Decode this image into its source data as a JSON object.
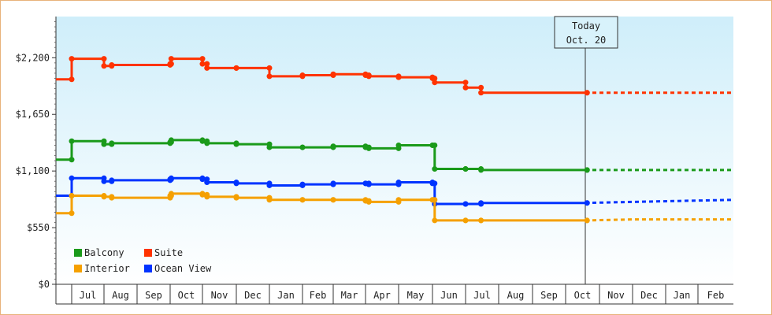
{
  "chart_data": {
    "type": "line",
    "step": true,
    "y_ticks": [
      0,
      550,
      1100,
      1650,
      2200
    ],
    "y_tick_labels": [
      "$0",
      "$550",
      "$1,100",
      "$1,650",
      "$2,200"
    ],
    "ylim": [
      0,
      2600
    ],
    "x_labels": [
      "Jul",
      "Aug",
      "Sep",
      "Oct",
      "Nov",
      "Dec",
      "Jan",
      "Feb",
      "Mar",
      "Apr",
      "May",
      "Jun",
      "Jul",
      "Aug",
      "Sep",
      "Oct",
      "Nov",
      "Dec",
      "Jan",
      "Feb"
    ],
    "today": {
      "line1": "Today",
      "line2": "Oct. 20"
    },
    "legend_position": "bottom-left",
    "colors": {
      "Balcony": "#1a9a1a",
      "Suite": "#ff3300",
      "Interior": "#f5a000",
      "Ocean View": "#0033ff"
    },
    "series": [
      {
        "name": "Suite",
        "color": "#ff3300",
        "points": [
          [
            "Jun 1",
            1990
          ],
          [
            "Jul 1",
            2190
          ],
          [
            "Aug 1",
            2120
          ],
          [
            "Aug 8",
            2130
          ],
          [
            "Oct 1",
            2140
          ],
          [
            "Oct 2",
            2190
          ],
          [
            "Nov 1",
            2140
          ],
          [
            "Nov 5",
            2100
          ],
          [
            "Dec 1",
            2100
          ],
          [
            "Jan 1",
            2020
          ],
          [
            "Feb 1",
            2030
          ],
          [
            "Mar 1",
            2040
          ],
          [
            "Apr 1",
            2030
          ],
          [
            "Apr 4",
            2020
          ],
          [
            "May 1",
            2010
          ],
          [
            "Jun 1",
            2000
          ],
          [
            "Jun 3",
            1960
          ],
          [
            "Jul 1",
            1910
          ],
          [
            "Jul 15",
            1860
          ],
          [
            "Oct 20",
            1860
          ]
        ],
        "forecast": [
          [
            "Oct 20",
            1860
          ],
          [
            "Feb 28",
            1860
          ]
        ]
      },
      {
        "name": "Balcony",
        "color": "#1a9a1a",
        "points": [
          [
            "Jun 1",
            1210
          ],
          [
            "Jul 1",
            1390
          ],
          [
            "Aug 1",
            1360
          ],
          [
            "Aug 8",
            1370
          ],
          [
            "Oct 1",
            1380
          ],
          [
            "Oct 2",
            1400
          ],
          [
            "Nov 1",
            1390
          ],
          [
            "Nov 5",
            1370
          ],
          [
            "Dec 1",
            1360
          ],
          [
            "Jan 1",
            1330
          ],
          [
            "Feb 1",
            1330
          ],
          [
            "Mar 1",
            1340
          ],
          [
            "Apr 1",
            1330
          ],
          [
            "Apr 4",
            1320
          ],
          [
            "May 1",
            1350
          ],
          [
            "Jun 1",
            1350
          ],
          [
            "Jun 3",
            1120
          ],
          [
            "Jul 1",
            1120
          ],
          [
            "Jul 15",
            1110
          ],
          [
            "Oct 20",
            1110
          ]
        ],
        "forecast": [
          [
            "Oct 20",
            1110
          ],
          [
            "Feb 28",
            1110
          ]
        ]
      },
      {
        "name": "Ocean View",
        "color": "#0033ff",
        "points": [
          [
            "Jun 1",
            860
          ],
          [
            "Jul 1",
            1030
          ],
          [
            "Aug 1",
            1000
          ],
          [
            "Aug 8",
            1010
          ],
          [
            "Oct 1",
            1020
          ],
          [
            "Oct 2",
            1030
          ],
          [
            "Nov 1",
            1020
          ],
          [
            "Nov 5",
            990
          ],
          [
            "Dec 1",
            980
          ],
          [
            "Jan 1",
            960
          ],
          [
            "Feb 1",
            970
          ],
          [
            "Mar 1",
            980
          ],
          [
            "Apr 1",
            980
          ],
          [
            "Apr 4",
            970
          ],
          [
            "May 1",
            990
          ],
          [
            "Jun 1",
            980
          ],
          [
            "Jun 3",
            780
          ],
          [
            "Jul 1",
            780
          ],
          [
            "Jul 15",
            790
          ],
          [
            "Oct 20",
            790
          ]
        ],
        "forecast": [
          [
            "Oct 20",
            790
          ],
          [
            "Dec 1",
            800
          ],
          [
            "Feb 28",
            820
          ]
        ]
      },
      {
        "name": "Interior",
        "color": "#f5a000",
        "points": [
          [
            "Jun 1",
            690
          ],
          [
            "Jul 1",
            860
          ],
          [
            "Aug 1",
            850
          ],
          [
            "Aug 8",
            840
          ],
          [
            "Oct 1",
            860
          ],
          [
            "Oct 2",
            880
          ],
          [
            "Nov 1",
            870
          ],
          [
            "Nov 5",
            850
          ],
          [
            "Dec 1",
            840
          ],
          [
            "Jan 1",
            820
          ],
          [
            "Feb 1",
            820
          ],
          [
            "Mar 1",
            820
          ],
          [
            "Apr 1",
            810
          ],
          [
            "Apr 4",
            800
          ],
          [
            "May 1",
            820
          ],
          [
            "Jun 1",
            820
          ],
          [
            "Jun 3",
            620
          ],
          [
            "Jul 1",
            620
          ],
          [
            "Jul 15",
            620
          ],
          [
            "Oct 20",
            620
          ]
        ],
        "forecast": [
          [
            "Oct 20",
            620
          ],
          [
            "Dec 1",
            630
          ],
          [
            "Feb 28",
            630
          ]
        ]
      }
    ],
    "legend": [
      {
        "name": "Balcony",
        "color": "#1a9a1a"
      },
      {
        "name": "Suite",
        "color": "#ff3300"
      },
      {
        "name": "Interior",
        "color": "#f5a000"
      },
      {
        "name": "Ocean View",
        "color": "#0033ff"
      }
    ]
  }
}
